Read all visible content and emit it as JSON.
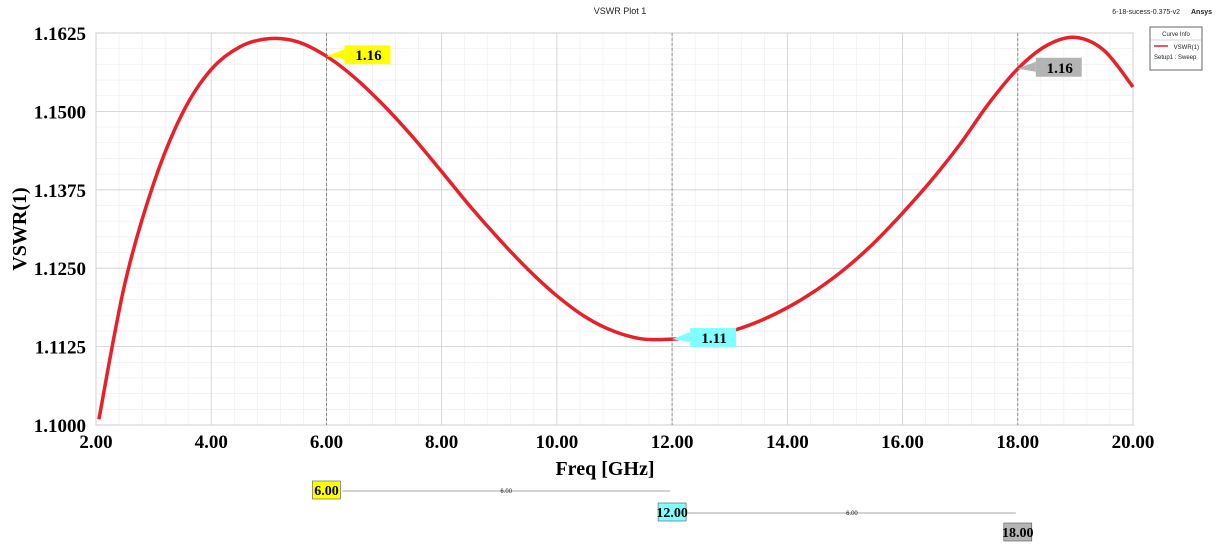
{
  "header": {
    "title": "VSWR Plot 1",
    "project": "6-18-sucess-0.375-v2",
    "brand": "Ansys"
  },
  "legend": {
    "title": "Curve Info",
    "series_label": "VSWR(1)",
    "setup_label": "Setup1 : Sweep"
  },
  "colors": {
    "curve": "#e8202a",
    "marker1": "#ffff00",
    "marker2": "#80ffff",
    "marker3": "#b4b4b4"
  },
  "chart_data": {
    "type": "line",
    "xlabel": "Freq [GHz]",
    "ylabel": "VSWR(1)",
    "xlim": [
      2.0,
      20.0
    ],
    "ylim": [
      1.1,
      1.1625
    ],
    "x_ticks": [
      "2.00",
      "4.00",
      "6.00",
      "8.00",
      "10.00",
      "12.00",
      "14.00",
      "16.00",
      "18.00",
      "20.00"
    ],
    "y_ticks": [
      "1.1000",
      "1.1125",
      "1.1250",
      "1.1375",
      "1.1500",
      "1.1625"
    ],
    "grid": true,
    "legend_position": "top-right",
    "series": [
      {
        "name": "VSWR(1)",
        "x": [
          2.05,
          2.5,
          3.0,
          3.5,
          4.0,
          4.5,
          5.0,
          5.5,
          6.0,
          6.5,
          7.0,
          7.5,
          8.0,
          8.5,
          9.0,
          9.5,
          10.0,
          10.5,
          11.0,
          11.5,
          12.0,
          12.5,
          13.0,
          13.5,
          14.0,
          14.5,
          15.0,
          15.5,
          16.0,
          16.5,
          17.0,
          17.5,
          18.0,
          18.5,
          19.0,
          19.5,
          20.0
        ],
        "y": [
          1.1009,
          1.1225,
          1.1385,
          1.1497,
          1.1567,
          1.1603,
          1.1616,
          1.1611,
          1.1588,
          1.1553,
          1.1509,
          1.1459,
          1.1404,
          1.1348,
          1.1296,
          1.1248,
          1.1206,
          1.1172,
          1.1149,
          1.1137,
          1.1137,
          1.114,
          1.1149,
          1.1165,
          1.1187,
          1.1215,
          1.1249,
          1.129,
          1.1338,
          1.139,
          1.1448,
          1.1513,
          1.1568,
          1.1605,
          1.1618,
          1.1597,
          1.1539
        ]
      }
    ],
    "markers": [
      {
        "id": "m1",
        "x": 6.0,
        "x_label": "6.00",
        "y": 1.1588,
        "label": "1.16",
        "color": "#ffff00"
      },
      {
        "id": "m2",
        "x": 12.0,
        "x_label": "12.00",
        "y": 1.1137,
        "label": "1.11",
        "color": "#80ffff"
      },
      {
        "id": "m3",
        "x": 18.0,
        "x_label": "18.00",
        "y": 1.1568,
        "label": "1.16",
        "color": "#b4b4b4"
      }
    ],
    "deltas": [
      {
        "from": "m1",
        "to": "m2",
        "label": "6.00"
      },
      {
        "from": "m2",
        "to": "m3",
        "label": "6.00"
      }
    ]
  }
}
